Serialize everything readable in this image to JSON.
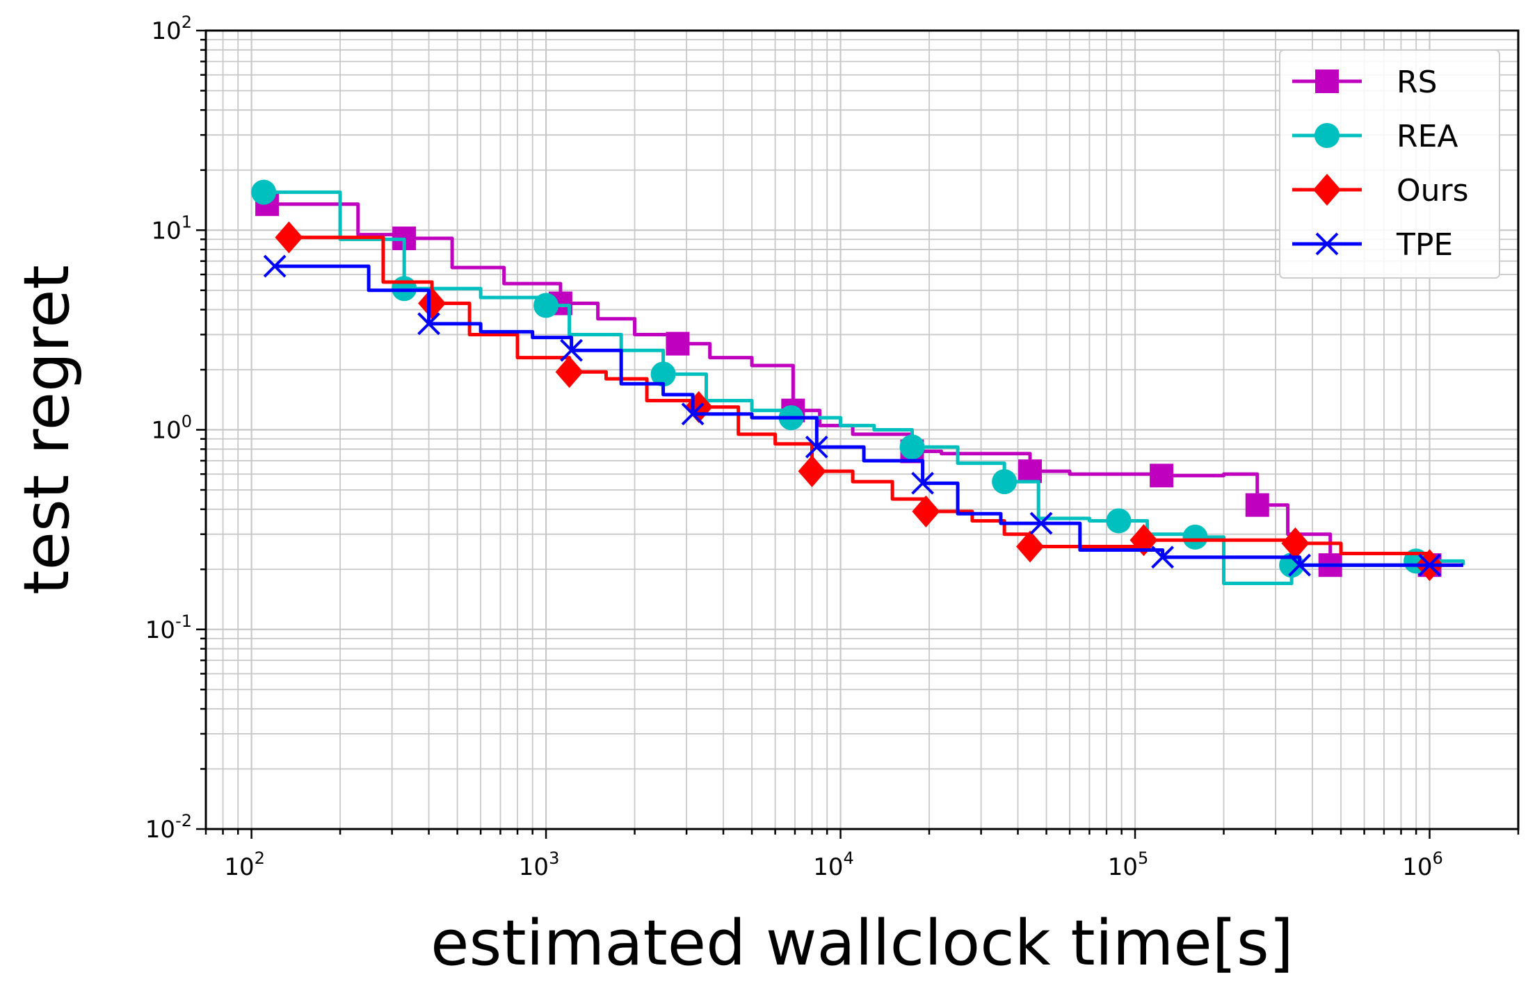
{
  "chart_data": {
    "type": "line",
    "title": "",
    "xlabel": "estimated wallclock time[s]",
    "ylabel": "test regret",
    "xscale": "log",
    "yscale": "log",
    "xlim": [
      70,
      2000000
    ],
    "ylim": [
      0.01,
      100
    ],
    "grid": true,
    "legend_position": "top-right",
    "x_ticks": [
      {
        "value": 100,
        "base": "10",
        "exp": "2"
      },
      {
        "value": 1000,
        "base": "10",
        "exp": "3"
      },
      {
        "value": 10000,
        "base": "10",
        "exp": "4"
      },
      {
        "value": 100000,
        "base": "10",
        "exp": "5"
      },
      {
        "value": 1000000,
        "base": "10",
        "exp": "6"
      }
    ],
    "y_ticks": [
      {
        "value": 0.01,
        "base": "10",
        "exp": "-2"
      },
      {
        "value": 0.1,
        "base": "10",
        "exp": "-1"
      },
      {
        "value": 1,
        "base": "10",
        "exp": "0"
      },
      {
        "value": 10,
        "base": "10",
        "exp": "1"
      },
      {
        "value": 100,
        "base": "10",
        "exp": "2"
      }
    ],
    "series": [
      {
        "name": "RS",
        "color": "#bf00bf",
        "marker": "square",
        "points": [
          [
            113,
            13.5
          ],
          [
            230,
            9.5
          ],
          [
            330,
            9.1
          ],
          [
            480,
            6.5
          ],
          [
            720,
            5.4
          ],
          [
            1120,
            4.3
          ],
          [
            1500,
            3.6
          ],
          [
            2000,
            3.0
          ],
          [
            2800,
            2.7
          ],
          [
            3600,
            2.3
          ],
          [
            5000,
            2.1
          ],
          [
            6900,
            1.25
          ],
          [
            8500,
            1.05
          ],
          [
            11000,
            0.95
          ],
          [
            17500,
            0.78
          ],
          [
            22000,
            0.76
          ],
          [
            44000,
            0.62
          ],
          [
            60000,
            0.6
          ],
          [
            80000,
            0.6
          ],
          [
            123000,
            0.59
          ],
          [
            200000,
            0.6
          ],
          [
            260000,
            0.42
          ],
          [
            330000,
            0.3
          ],
          [
            460000,
            0.21
          ],
          [
            700000,
            0.21
          ],
          [
            1000000,
            0.21
          ],
          [
            1300000,
            0.21
          ]
        ],
        "markers": [
          [
            113,
            13.5
          ],
          [
            330,
            9.1
          ],
          [
            1120,
            4.3
          ],
          [
            2800,
            2.7
          ],
          [
            6900,
            1.25
          ],
          [
            17500,
            0.78
          ],
          [
            44000,
            0.62
          ],
          [
            123000,
            0.59
          ],
          [
            260000,
            0.42
          ],
          [
            460000,
            0.21
          ],
          [
            1000000,
            0.21
          ]
        ]
      },
      {
        "name": "REA",
        "color": "#00bfbf",
        "marker": "circle",
        "points": [
          [
            110,
            15.5
          ],
          [
            200,
            9.0
          ],
          [
            330,
            5.1
          ],
          [
            600,
            4.6
          ],
          [
            1000,
            4.2
          ],
          [
            1200,
            3.0
          ],
          [
            1800,
            2.5
          ],
          [
            2500,
            1.9
          ],
          [
            3500,
            1.4
          ],
          [
            5000,
            1.25
          ],
          [
            6800,
            1.15
          ],
          [
            10000,
            1.05
          ],
          [
            13000,
            1.0
          ],
          [
            17500,
            0.82
          ],
          [
            25000,
            0.68
          ],
          [
            36000,
            0.55
          ],
          [
            47000,
            0.36
          ],
          [
            70000,
            0.35
          ],
          [
            88000,
            0.35
          ],
          [
            110000,
            0.3
          ],
          [
            160000,
            0.29
          ],
          [
            200000,
            0.17
          ],
          [
            300000,
            0.17
          ],
          [
            340000,
            0.21
          ],
          [
            500000,
            0.21
          ],
          [
            900000,
            0.22
          ],
          [
            1300000,
            0.21
          ]
        ],
        "markers": [
          [
            110,
            15.5
          ],
          [
            330,
            5.1
          ],
          [
            1000,
            4.2
          ],
          [
            2500,
            1.9
          ],
          [
            6800,
            1.15
          ],
          [
            17500,
            0.82
          ],
          [
            36000,
            0.55
          ],
          [
            88000,
            0.35
          ],
          [
            160000,
            0.29
          ],
          [
            340000,
            0.21
          ],
          [
            900000,
            0.22
          ]
        ]
      },
      {
        "name": "Ours",
        "color": "#ff0000",
        "marker": "diamond",
        "points": [
          [
            134,
            9.2
          ],
          [
            280,
            5.5
          ],
          [
            410,
            4.3
          ],
          [
            550,
            3.0
          ],
          [
            800,
            2.3
          ],
          [
            1200,
            1.95
          ],
          [
            1600,
            1.8
          ],
          [
            2200,
            1.4
          ],
          [
            3300,
            1.3
          ],
          [
            4500,
            0.95
          ],
          [
            6000,
            0.85
          ],
          [
            8000,
            0.62
          ],
          [
            11000,
            0.55
          ],
          [
            15000,
            0.45
          ],
          [
            19500,
            0.39
          ],
          [
            28000,
            0.35
          ],
          [
            36000,
            0.3
          ],
          [
            44000,
            0.26
          ],
          [
            60000,
            0.26
          ],
          [
            80000,
            0.26
          ],
          [
            107000,
            0.28
          ],
          [
            150000,
            0.28
          ],
          [
            250000,
            0.28
          ],
          [
            350000,
            0.27
          ],
          [
            500000,
            0.24
          ],
          [
            1000000,
            0.21
          ],
          [
            1300000,
            0.21
          ]
        ],
        "markers": [
          [
            134,
            9.2
          ],
          [
            410,
            4.3
          ],
          [
            1200,
            1.95
          ],
          [
            3300,
            1.3
          ],
          [
            8000,
            0.62
          ],
          [
            19500,
            0.39
          ],
          [
            44000,
            0.26
          ],
          [
            107000,
            0.28
          ],
          [
            350000,
            0.27
          ],
          [
            1000000,
            0.21
          ]
        ]
      },
      {
        "name": "TPE",
        "color": "#0000ff",
        "marker": "x",
        "points": [
          [
            120,
            6.6
          ],
          [
            250,
            5.0
          ],
          [
            400,
            3.4
          ],
          [
            600,
            3.1
          ],
          [
            900,
            2.9
          ],
          [
            1220,
            2.5
          ],
          [
            1800,
            1.7
          ],
          [
            2500,
            1.5
          ],
          [
            3150,
            1.2
          ],
          [
            5000,
            1.15
          ],
          [
            8300,
            0.82
          ],
          [
            12000,
            0.7
          ],
          [
            19000,
            0.54
          ],
          [
            25000,
            0.38
          ],
          [
            35000,
            0.34
          ],
          [
            48000,
            0.34
          ],
          [
            65000,
            0.25
          ],
          [
            90000,
            0.25
          ],
          [
            124000,
            0.23
          ],
          [
            200000,
            0.23
          ],
          [
            362000,
            0.21
          ],
          [
            600000,
            0.21
          ],
          [
            1000000,
            0.21
          ],
          [
            1300000,
            0.21
          ]
        ],
        "markers": [
          [
            120,
            6.6
          ],
          [
            400,
            3.4
          ],
          [
            1220,
            2.5
          ],
          [
            3150,
            1.2
          ],
          [
            8300,
            0.82
          ],
          [
            19000,
            0.54
          ],
          [
            48000,
            0.34
          ],
          [
            124000,
            0.23
          ],
          [
            362000,
            0.21
          ],
          [
            1000000,
            0.21
          ]
        ]
      }
    ]
  }
}
